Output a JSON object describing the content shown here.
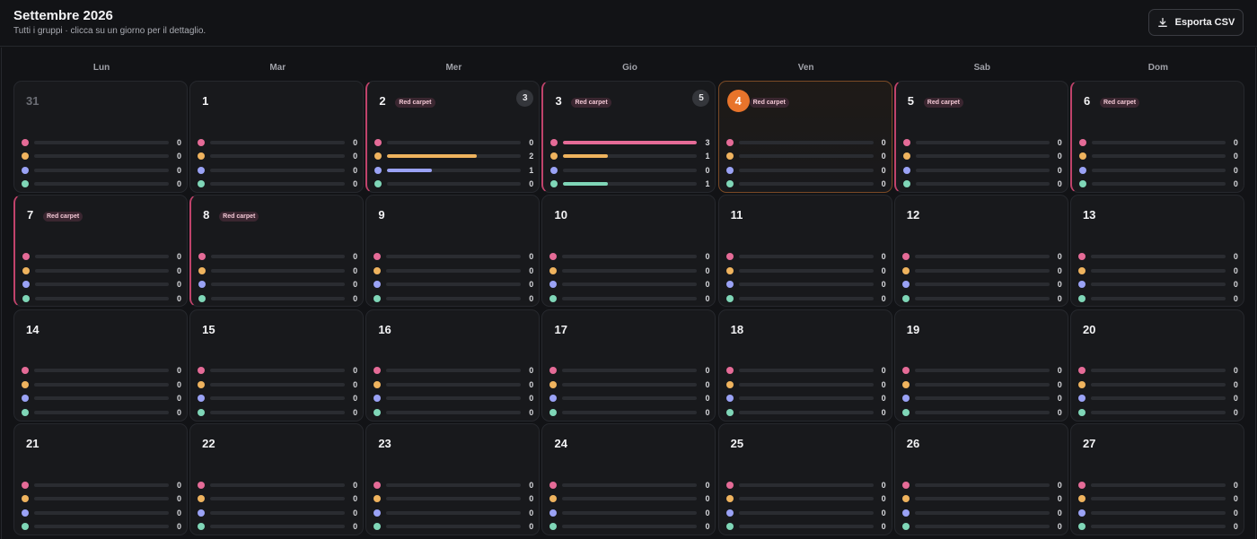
{
  "header": {
    "title": "Settembre 2026",
    "subtitle": "Tutti i gruppi · clicca su un giorno per il dettaglio.",
    "export_label": "Esporta CSV"
  },
  "icons": {
    "export": "download-icon"
  },
  "colors": {
    "series": [
      "#e56b97",
      "#efb35e",
      "#9aa2f5",
      "#7fd6b7"
    ],
    "accent": "#e8742b",
    "tag_border": "#c0436b"
  },
  "bar_max": 3,
  "weekdays": [
    "Lun",
    "Mar",
    "Mer",
    "Gio",
    "Ven",
    "Sab",
    "Dom"
  ],
  "weeks": [
    [
      {
        "day": "31",
        "outside": true,
        "tag": null,
        "count": null,
        "today": false,
        "values": [
          0,
          0,
          0,
          0
        ]
      },
      {
        "day": "1",
        "outside": false,
        "tag": null,
        "count": null,
        "today": false,
        "values": [
          0,
          0,
          0,
          0
        ]
      },
      {
        "day": "2",
        "outside": false,
        "tag": "Red carpet",
        "count": "3",
        "today": false,
        "values": [
          0,
          2,
          1,
          0
        ]
      },
      {
        "day": "3",
        "outside": false,
        "tag": "Red carpet",
        "count": "5",
        "today": false,
        "values": [
          3,
          1,
          0,
          1
        ]
      },
      {
        "day": "4",
        "outside": false,
        "tag": "Red carpet",
        "count": null,
        "today": true,
        "values": [
          0,
          0,
          0,
          0
        ]
      },
      {
        "day": "5",
        "outside": false,
        "tag": "Red carpet",
        "count": null,
        "today": false,
        "values": [
          0,
          0,
          0,
          0
        ]
      },
      {
        "day": "6",
        "outside": false,
        "tag": "Red carpet",
        "count": null,
        "today": false,
        "values": [
          0,
          0,
          0,
          0
        ]
      }
    ],
    [
      {
        "day": "7",
        "outside": false,
        "tag": "Red carpet",
        "count": null,
        "today": false,
        "values": [
          0,
          0,
          0,
          0
        ]
      },
      {
        "day": "8",
        "outside": false,
        "tag": "Red carpet",
        "count": null,
        "today": false,
        "values": [
          0,
          0,
          0,
          0
        ]
      },
      {
        "day": "9",
        "outside": false,
        "tag": null,
        "count": null,
        "today": false,
        "values": [
          0,
          0,
          0,
          0
        ]
      },
      {
        "day": "10",
        "outside": false,
        "tag": null,
        "count": null,
        "today": false,
        "values": [
          0,
          0,
          0,
          0
        ]
      },
      {
        "day": "11",
        "outside": false,
        "tag": null,
        "count": null,
        "today": false,
        "values": [
          0,
          0,
          0,
          0
        ]
      },
      {
        "day": "12",
        "outside": false,
        "tag": null,
        "count": null,
        "today": false,
        "values": [
          0,
          0,
          0,
          0
        ]
      },
      {
        "day": "13",
        "outside": false,
        "tag": null,
        "count": null,
        "today": false,
        "values": [
          0,
          0,
          0,
          0
        ]
      }
    ],
    [
      {
        "day": "14",
        "outside": false,
        "tag": null,
        "count": null,
        "today": false,
        "values": [
          0,
          0,
          0,
          0
        ]
      },
      {
        "day": "15",
        "outside": false,
        "tag": null,
        "count": null,
        "today": false,
        "values": [
          0,
          0,
          0,
          0
        ]
      },
      {
        "day": "16",
        "outside": false,
        "tag": null,
        "count": null,
        "today": false,
        "values": [
          0,
          0,
          0,
          0
        ]
      },
      {
        "day": "17",
        "outside": false,
        "tag": null,
        "count": null,
        "today": false,
        "values": [
          0,
          0,
          0,
          0
        ]
      },
      {
        "day": "18",
        "outside": false,
        "tag": null,
        "count": null,
        "today": false,
        "values": [
          0,
          0,
          0,
          0
        ]
      },
      {
        "day": "19",
        "outside": false,
        "tag": null,
        "count": null,
        "today": false,
        "values": [
          0,
          0,
          0,
          0
        ]
      },
      {
        "day": "20",
        "outside": false,
        "tag": null,
        "count": null,
        "today": false,
        "values": [
          0,
          0,
          0,
          0
        ]
      }
    ],
    [
      {
        "day": "21",
        "outside": false,
        "tag": null,
        "count": null,
        "today": false,
        "values": [
          0,
          0,
          0,
          0
        ]
      },
      {
        "day": "22",
        "outside": false,
        "tag": null,
        "count": null,
        "today": false,
        "values": [
          0,
          0,
          0,
          0
        ]
      },
      {
        "day": "23",
        "outside": false,
        "tag": null,
        "count": null,
        "today": false,
        "values": [
          0,
          0,
          0,
          0
        ]
      },
      {
        "day": "24",
        "outside": false,
        "tag": null,
        "count": null,
        "today": false,
        "values": [
          0,
          0,
          0,
          0
        ]
      },
      {
        "day": "25",
        "outside": false,
        "tag": null,
        "count": null,
        "today": false,
        "values": [
          0,
          0,
          0,
          0
        ]
      },
      {
        "day": "26",
        "outside": false,
        "tag": null,
        "count": null,
        "today": false,
        "values": [
          0,
          0,
          0,
          0
        ]
      },
      {
        "day": "27",
        "outside": false,
        "tag": null,
        "count": null,
        "today": false,
        "values": [
          0,
          0,
          0,
          0
        ]
      }
    ]
  ]
}
